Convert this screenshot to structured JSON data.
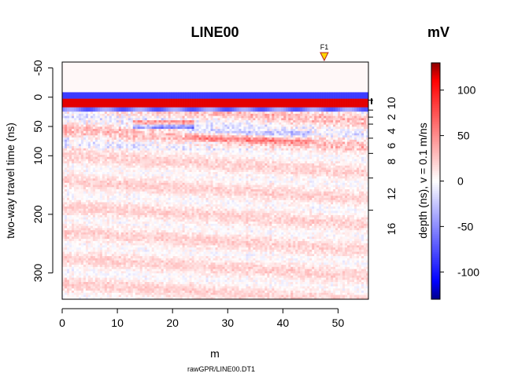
{
  "chart_data": {
    "type": "heatmap",
    "title": "LINE00",
    "xlabel": "m",
    "ylabel": "two-way travel time (ns)",
    "right_axis_label": "depth (ns),  v = 0.1 m/ns",
    "colorbar_title": "mV",
    "caption": "rawGPR/LINE00.DT1",
    "marker_label": "F1",
    "marker_position_m": 47.5,
    "xlim": [
      0,
      55.5
    ],
    "ylim": [
      -60,
      345
    ],
    "x_ticks": [
      "0",
      "10",
      "20",
      "30",
      "40",
      "50"
    ],
    "x_tick_values": [
      0,
      10,
      20,
      30,
      40,
      50
    ],
    "y_ticks": [
      "-50",
      "0",
      "50",
      "100",
      "200",
      "300"
    ],
    "y_tick_values": [
      -50,
      0,
      50,
      100,
      200,
      300
    ],
    "depth_ticks": [
      "0",
      "2",
      "4",
      "6",
      "8",
      "12",
      "16"
    ],
    "depth_tick_labels_shown": [
      "10",
      "2",
      "4",
      "6",
      "8",
      "12",
      "16"
    ],
    "depth_tick_values_ns": [
      10,
      34,
      58,
      83,
      110,
      165,
      225
    ],
    "depth_minor_ticks_ns": [
      5,
      22,
      34,
      46,
      70,
      96,
      138,
      193
    ],
    "colorbar_range": [
      -130,
      130
    ],
    "colorbar_ticks": [
      "100",
      "50",
      "0",
      "-50",
      "-100"
    ],
    "colorbar_tick_values": [
      100,
      50,
      0,
      -50,
      -100
    ],
    "colors": {
      "low": "#00008B",
      "mid_low": "#0000FF",
      "zero": "#FFFFFF",
      "mid_high": "#FF0000",
      "high": "#8B0000",
      "marker_fill": "#FFD700",
      "marker_stroke": "#B22222"
    }
  }
}
